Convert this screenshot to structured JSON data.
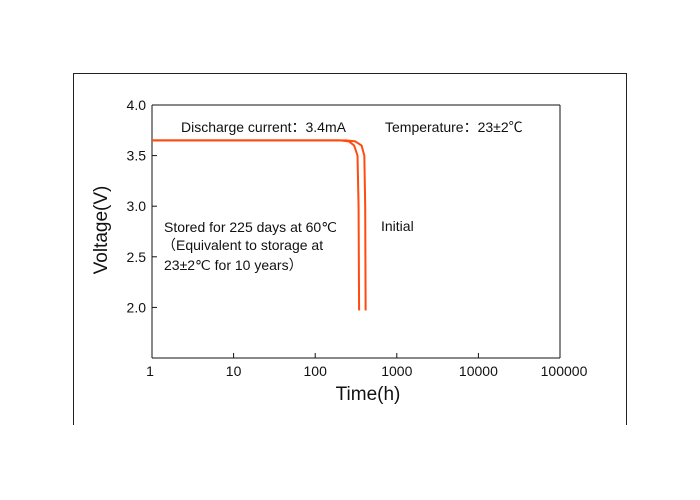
{
  "chart_data": {
    "type": "line",
    "xlabel": "Time(h)",
    "ylabel": "Voltage(V)",
    "x_scale": "log",
    "xlim": [
      1,
      100000
    ],
    "ylim": [
      1.5,
      4.0
    ],
    "x_ticks": [
      "1",
      "10",
      "100",
      "1000",
      "10000",
      "100000"
    ],
    "y_ticks": [
      "4.0",
      "3.5",
      "3.0",
      "2.5",
      "2.0"
    ],
    "grid": false,
    "annotations": {
      "discharge": "Discharge current：3.4mA",
      "temperature": "Temperature：23±2℃",
      "stored_line1": "Stored for 225 days at 60℃",
      "stored_line2": "（Equivalent to storage at",
      "stored_line3": "23±2℃ for 10 years）",
      "initial": "Initial"
    },
    "line_color": "#ff4a12",
    "series": [
      {
        "x": [
          1,
          200,
          260,
          300,
          330,
          340,
          345
        ],
        "y": [
          3.65,
          3.65,
          3.64,
          3.6,
          3.5,
          3.0,
          1.97
        ]
      },
      {
        "x": [
          1,
          240,
          310,
          370,
          400,
          410,
          415
        ],
        "y": [
          3.65,
          3.65,
          3.64,
          3.6,
          3.5,
          3.0,
          1.97
        ]
      }
    ]
  }
}
